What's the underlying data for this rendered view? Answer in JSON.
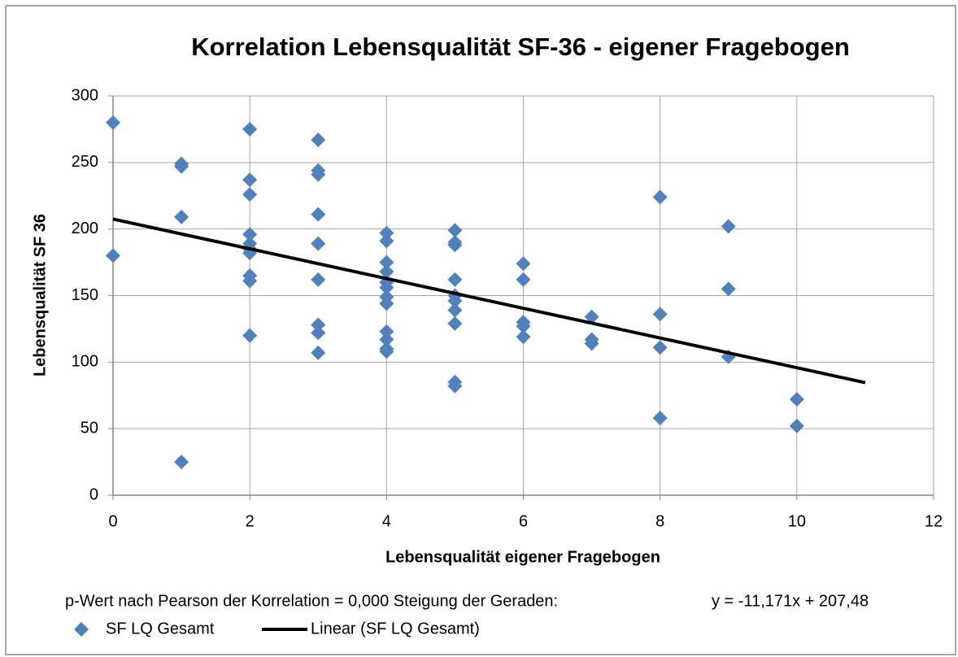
{
  "chart_data": {
    "type": "scatter",
    "title": "Korrelation Lebensqualität SF-36 - eigener Fragebogen",
    "xlabel": "Lebensqualität eigener Fragebogen",
    "ylabel": "Lebensqualität SF 36",
    "xlim": [
      0,
      12
    ],
    "xticks": [
      0,
      2,
      4,
      6,
      8,
      10,
      12
    ],
    "ylim": [
      0,
      300
    ],
    "yticks": [
      0,
      50,
      100,
      150,
      200,
      250,
      300
    ],
    "grid": true,
    "series": [
      {
        "name": "SF LQ Gesamt",
        "color": "#4f81bd",
        "x": [
          0,
          0,
          1,
          1,
          1,
          1,
          2,
          2,
          2,
          2,
          2,
          2,
          2,
          2,
          2,
          2,
          3,
          3,
          3,
          3,
          3,
          3,
          3,
          3,
          3,
          4,
          4,
          4,
          4,
          4,
          4,
          4,
          4,
          4,
          4,
          4,
          4,
          5,
          5,
          5,
          5,
          5,
          5,
          5,
          5,
          5,
          5,
          6,
          6,
          6,
          6,
          6,
          7,
          7,
          7,
          8,
          8,
          8,
          8,
          9,
          9,
          9,
          10,
          10
        ],
        "values": [
          280,
          180,
          249,
          247,
          209,
          25,
          275,
          237,
          226,
          196,
          189,
          185,
          182,
          165,
          161,
          120,
          267,
          244,
          241,
          211,
          189,
          162,
          128,
          122,
          107,
          197,
          191,
          175,
          168,
          160,
          156,
          149,
          144,
          123,
          117,
          110,
          108,
          199,
          190,
          188,
          162,
          150,
          146,
          139,
          129,
          85,
          82,
          174,
          162,
          130,
          127,
          119,
          134,
          117,
          114,
          224,
          136,
          111,
          58,
          202,
          155,
          104,
          72,
          52
        ]
      }
    ],
    "trendline": {
      "name": "Linear (SF LQ Gesamt)",
      "color": "#000000",
      "slope": -11.171,
      "intercept": 207.48,
      "x": [
        0,
        11
      ],
      "label": "y = -11,171x + 207,48"
    },
    "annotation": "p-Wert nach Pearson  der Korrelation = 0,000  Steigung der Geraden:"
  }
}
